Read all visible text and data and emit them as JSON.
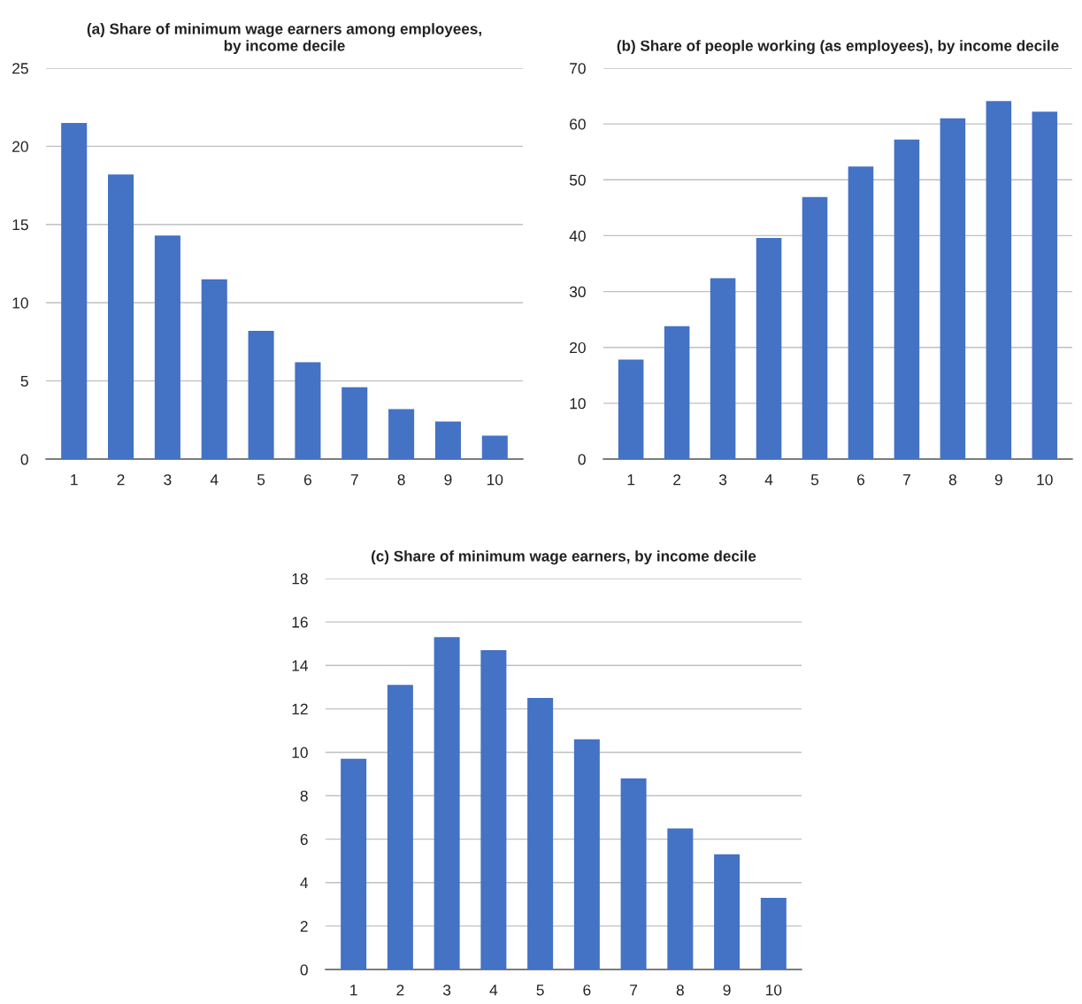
{
  "chart_data": [
    {
      "type": "bar",
      "title": "(a) Share of minimum wage earners among employees,\nby income decile",
      "categories": [
        "1",
        "2",
        "3",
        "4",
        "5",
        "6",
        "7",
        "8",
        "9",
        "10"
      ],
      "values": [
        21.5,
        18.2,
        14.3,
        11.5,
        8.2,
        6.2,
        4.6,
        3.2,
        2.4,
        1.5
      ],
      "color": "#4472c4",
      "ylim": [
        0,
        25
      ],
      "yticks": [
        0,
        5,
        10,
        15,
        20,
        25
      ],
      "grid": "y"
    },
    {
      "type": "bar",
      "title": "(b) Share of people working (as employees), by income decile",
      "categories": [
        "1",
        "2",
        "3",
        "4",
        "5",
        "6",
        "7",
        "8",
        "9",
        "10"
      ],
      "values": [
        17.8,
        23.8,
        32.4,
        39.6,
        46.9,
        52.4,
        57.2,
        61.0,
        64.1,
        62.2
      ],
      "color": "#4472c4",
      "ylim": [
        0,
        70
      ],
      "yticks": [
        0,
        10,
        20,
        30,
        40,
        50,
        60,
        70
      ],
      "grid": "y"
    },
    {
      "type": "bar",
      "title": "(c) Share of minimum wage earners, by income decile",
      "categories": [
        "1",
        "2",
        "3",
        "4",
        "5",
        "6",
        "7",
        "8",
        "9",
        "10"
      ],
      "values": [
        9.7,
        13.1,
        15.3,
        14.7,
        12.5,
        10.6,
        8.8,
        6.5,
        5.3,
        3.3
      ],
      "color": "#4472c4",
      "ylim": [
        0,
        18
      ],
      "yticks": [
        0,
        2,
        4,
        6,
        8,
        10,
        12,
        14,
        16,
        18
      ],
      "grid": "y"
    }
  ]
}
